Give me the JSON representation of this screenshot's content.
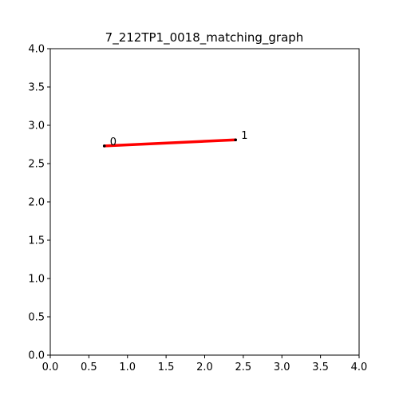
{
  "chart_data": {
    "type": "line",
    "title": "7_212TP1_0018_matching_graph",
    "xlabel": "",
    "ylabel": "",
    "xlim": [
      0.0,
      4.0
    ],
    "ylim": [
      0.0,
      4.0
    ],
    "x_ticks": [
      "0.0",
      "0.5",
      "1.0",
      "1.5",
      "2.0",
      "2.5",
      "3.0",
      "3.5",
      "4.0"
    ],
    "y_ticks": [
      "0.0",
      "0.5",
      "1.0",
      "1.5",
      "2.0",
      "2.5",
      "3.0",
      "3.5",
      "4.0"
    ],
    "grid": false,
    "nodes": [
      {
        "label": "0",
        "x": 0.7,
        "y": 2.73
      },
      {
        "label": "1",
        "x": 2.4,
        "y": 2.81
      }
    ],
    "edges": [
      {
        "from": 0,
        "to": 1,
        "color": "#ff0000"
      }
    ]
  }
}
